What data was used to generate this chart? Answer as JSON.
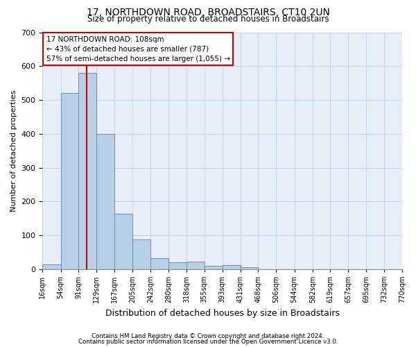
{
  "title": "17, NORTHDOWN ROAD, BROADSTAIRS, CT10 2UN",
  "subtitle": "Size of property relative to detached houses in Broadstairs",
  "xlabel": "Distribution of detached houses by size in Broadstairs",
  "ylabel": "Number of detached properties",
  "bin_edges": [
    16,
    54,
    91,
    129,
    167,
    205,
    242,
    280,
    318,
    355,
    393,
    431,
    468,
    506,
    544,
    582,
    619,
    657,
    695,
    732,
    770
  ],
  "bar_heights": [
    13,
    520,
    580,
    400,
    163,
    88,
    33,
    20,
    22,
    10,
    12,
    5,
    0,
    0,
    0,
    0,
    0,
    0,
    0,
    0
  ],
  "bar_color": "#b8cfe8",
  "bar_edgecolor": "#6090c0",
  "property_size": 108,
  "vline_color": "#cc0000",
  "annotation_text": "17 NORTHDOWN ROAD: 108sqm\n← 43% of detached houses are smaller (787)\n57% of semi-detached houses are larger (1,055) →",
  "annotation_box_facecolor": "#ffffff",
  "annotation_box_edgecolor": "#cc0000",
  "footnote1": "Contains HM Land Registry data © Crown copyright and database right 2024.",
  "footnote2": "Contains public sector information licensed under the Open Government Licence v3.0.",
  "ylim": [
    0,
    700
  ],
  "yticks": [
    0,
    100,
    200,
    300,
    400,
    500,
    600,
    700
  ],
  "grid_color": "#c8d4e8",
  "bg_color": "#ffffff",
  "plot_bg_color": "#e8eef8"
}
